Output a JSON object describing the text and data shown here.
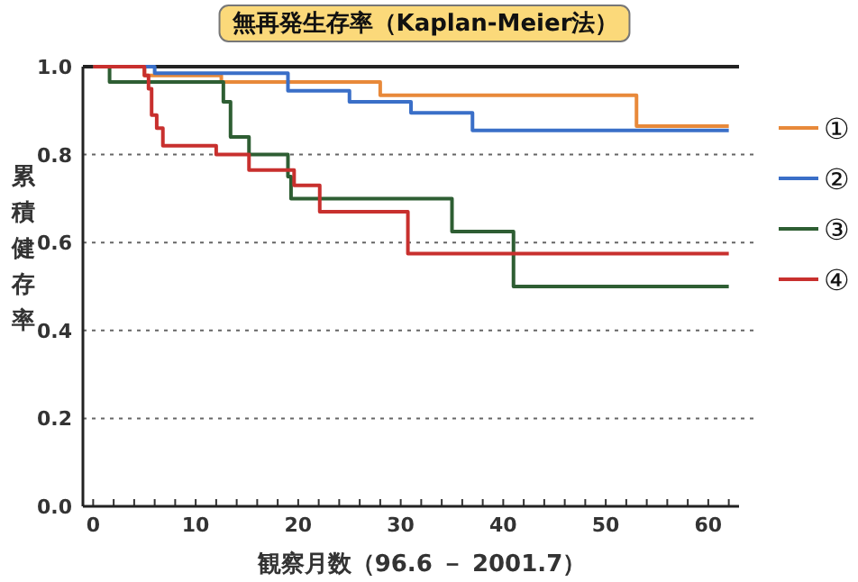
{
  "chart_data": {
    "type": "step",
    "title": "無再発生存率（Kaplan-Meier法）",
    "xlabel": "観察月数（96.6 － 2001.7）",
    "ylabel": "累積健存率",
    "xlim": [
      -1,
      63
    ],
    "ylim": [
      0,
      1
    ],
    "xticks": [
      0,
      {
        "value": 2,
        "label": null
      },
      {
        "value": 4,
        "label": null
      },
      {
        "value": 6,
        "label": null
      },
      {
        "value": 8,
        "label": null
      },
      10,
      {
        "value": 12,
        "label": null
      },
      {
        "value": 14,
        "label": null
      },
      {
        "value": 16,
        "label": null
      },
      {
        "value": 18,
        "label": null
      },
      20,
      {
        "value": 22,
        "label": null
      },
      {
        "value": 24,
        "label": null
      },
      {
        "value": 26,
        "label": null
      },
      {
        "value": 28,
        "label": null
      },
      30,
      {
        "value": 32,
        "label": null
      },
      {
        "value": 34,
        "label": null
      },
      {
        "value": 36,
        "label": null
      },
      {
        "value": 38,
        "label": null
      },
      40,
      {
        "value": 42,
        "label": null
      },
      {
        "value": 44,
        "label": null
      },
      {
        "value": 46,
        "label": null
      },
      {
        "value": 48,
        "label": null
      },
      50,
      {
        "value": 52,
        "label": null
      },
      {
        "value": 54,
        "label": null
      },
      {
        "value": 56,
        "label": null
      },
      {
        "value": 58,
        "label": null
      },
      60,
      {
        "value": 62,
        "label": null
      }
    ],
    "yticks": [
      {
        "value": 0,
        "label": "0.0"
      },
      {
        "value": 0.2,
        "label": "0.2"
      },
      {
        "value": 0.4,
        "label": "0.4"
      },
      {
        "value": 0.6,
        "label": "0.6"
      },
      {
        "value": 0.8,
        "label": "0.8"
      },
      {
        "value": 1,
        "label": "1.0"
      }
    ],
    "grid": "y",
    "legend": "right",
    "series": [
      {
        "name": "①",
        "color": "#e8893a",
        "x": [
          0,
          5,
          12.5,
          28,
          53,
          62
        ],
        "values": [
          1,
          0.98,
          0.965,
          0.935,
          0.865,
          0.865
        ]
      },
      {
        "name": "②",
        "color": "#3a6fc8",
        "x": [
          0,
          6,
          19,
          25,
          31,
          37,
          62
        ],
        "values": [
          1,
          0.985,
          0.945,
          0.92,
          0.895,
          0.855,
          0.855
        ]
      },
      {
        "name": "③",
        "color": "#2e5e33",
        "x": [
          0,
          1.6,
          12.7,
          13.4,
          15.2,
          19,
          19.3,
          35,
          41,
          62
        ],
        "values": [
          1,
          0.965,
          0.92,
          0.84,
          0.8,
          0.75,
          0.7,
          0.625,
          0.5,
          0.5
        ]
      },
      {
        "name": "④",
        "color": "#c8302e",
        "x": [
          0,
          5,
          5.4,
          5.7,
          6.2,
          6.8,
          12,
          15.2,
          19.6,
          22.1,
          30.7,
          62
        ],
        "values": [
          1,
          0.98,
          0.95,
          0.89,
          0.86,
          0.82,
          0.8,
          0.765,
          0.73,
          0.67,
          0.575,
          0.575
        ]
      }
    ]
  }
}
